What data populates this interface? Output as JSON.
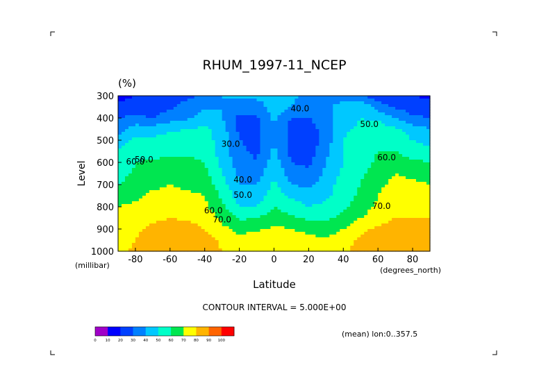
{
  "chart_data": {
    "type": "heatmap",
    "title": "RHUM_1997-11_NCEP",
    "units": "(%)",
    "xlabel": "Latitude",
    "ylabel": "Level",
    "x_units_label": "(degrees_north)",
    "y_units_label": "(millibar)",
    "xlim": [
      -90,
      90
    ],
    "ylim": [
      1000,
      300
    ],
    "x_ticks": [
      -80,
      -60,
      -40,
      -20,
      0,
      20,
      40,
      60,
      80
    ],
    "x_tick_labels": [
      "-80",
      "-60",
      "-40",
      "-20",
      "0",
      "20",
      "40",
      "60",
      "80"
    ],
    "y_ticks": [
      300,
      400,
      500,
      600,
      700,
      800,
      900,
      1000
    ],
    "y_tick_labels": [
      "300",
      "400",
      "500",
      "600",
      "700",
      "800",
      "900",
      "1000"
    ],
    "contour_interval_text": "CONTOUR INTERVAL = 5.000E+00",
    "footnote": "(mean) lon:0..357.5",
    "colorbar": {
      "levels": [
        0,
        10,
        20,
        30,
        40,
        50,
        60,
        70,
        80,
        90,
        100
      ],
      "level_labels": [
        "0",
        "10",
        "20",
        "30",
        "40",
        "50",
        "60",
        "70",
        "80",
        "90",
        "100"
      ],
      "colors": [
        "#a000c8",
        "#0000ff",
        "#0040ff",
        "#0080ff",
        "#00c8ff",
        "#00ffc8",
        "#00e650",
        "#ffff00",
        "#ffb400",
        "#ff6400",
        "#ff0000"
      ]
    },
    "contour_labels": [
      {
        "text": "40.0",
        "lat": 15,
        "level": 370
      },
      {
        "text": "30.0",
        "lat": -25,
        "level": 530
      },
      {
        "text": "40.0",
        "lat": -18,
        "level": 690
      },
      {
        "text": "50.0",
        "lat": -18,
        "level": 760
      },
      {
        "text": "60.0",
        "lat": -35,
        "level": 830
      },
      {
        "text": "70.0",
        "lat": -30,
        "level": 870
      },
      {
        "text": "50.0",
        "lat": 55,
        "level": 440
      },
      {
        "text": "60.0",
        "lat": 65,
        "level": 590
      },
      {
        "text": "70.0",
        "lat": 62,
        "level": 810
      },
      {
        "text": "50.0",
        "lat": -75,
        "level": 600
      },
      {
        "text": "60.0",
        "lat": -80,
        "level": 610
      }
    ],
    "x": [
      -90,
      -80,
      -70,
      -60,
      -50,
      -40,
      -30,
      -20,
      -10,
      0,
      10,
      20,
      30,
      40,
      50,
      60,
      70,
      80,
      90
    ],
    "levels": [
      300,
      350,
      400,
      450,
      500,
      550,
      600,
      650,
      700,
      750,
      800,
      850,
      900,
      950,
      1000
    ],
    "values": [
      [
        15,
        20,
        22,
        25,
        28,
        32,
        40,
        42,
        42,
        46,
        42,
        38,
        38,
        33,
        30,
        25,
        22,
        20,
        18
      ],
      [
        25,
        25,
        25,
        28,
        34,
        38,
        40,
        35,
        35,
        45,
        40,
        35,
        38,
        45,
        50,
        35,
        28,
        25,
        23
      ],
      [
        30,
        32,
        30,
        35,
        38,
        45,
        40,
        28,
        28,
        42,
        30,
        30,
        35,
        45,
        50,
        48,
        40,
        32,
        30
      ],
      [
        35,
        45,
        45,
        48,
        50,
        52,
        45,
        28,
        26,
        40,
        26,
        25,
        35,
        48,
        52,
        55,
        52,
        45,
        40
      ],
      [
        45,
        52,
        52,
        55,
        55,
        55,
        45,
        30,
        28,
        40,
        26,
        22,
        35,
        50,
        55,
        58,
        56,
        50,
        45
      ],
      [
        50,
        57,
        57,
        58,
        58,
        58,
        45,
        32,
        28,
        42,
        26,
        24,
        38,
        50,
        55,
        60,
        60,
        55,
        55
      ],
      [
        52,
        60,
        61,
        62,
        62,
        60,
        48,
        35,
        30,
        45,
        30,
        28,
        40,
        50,
        55,
        62,
        65,
        62,
        60
      ],
      [
        55,
        62,
        65,
        66,
        65,
        62,
        50,
        38,
        35,
        48,
        35,
        32,
        42,
        52,
        58,
        66,
        70,
        68,
        65
      ],
      [
        60,
        65,
        68,
        70,
        68,
        66,
        55,
        40,
        40,
        52,
        40,
        38,
        45,
        55,
        60,
        68,
        72,
        72,
        70
      ],
      [
        65,
        68,
        72,
        73,
        72,
        70,
        58,
        45,
        45,
        55,
        48,
        45,
        48,
        55,
        62,
        70,
        75,
        75,
        75
      ],
      [
        70,
        72,
        75,
        76,
        75,
        72,
        62,
        50,
        50,
        60,
        55,
        50,
        52,
        58,
        65,
        72,
        77,
        78,
        78
      ],
      [
        72,
        75,
        78,
        80,
        78,
        76,
        68,
        58,
        60,
        65,
        62,
        58,
        58,
        62,
        70,
        75,
        80,
        80,
        80
      ],
      [
        75,
        78,
        82,
        85,
        85,
        80,
        72,
        68,
        68,
        72,
        70,
        68,
        65,
        70,
        78,
        82,
        85,
        82,
        82
      ],
      [
        75,
        80,
        86,
        88,
        88,
        85,
        78,
        72,
        75,
        78,
        75,
        72,
        72,
        75,
        82,
        86,
        86,
        84,
        84
      ],
      [
        78,
        82,
        88,
        90,
        90,
        86,
        80,
        75,
        78,
        80,
        78,
        75,
        75,
        78,
        85,
        88,
        88,
        86,
        85
      ]
    ]
  }
}
